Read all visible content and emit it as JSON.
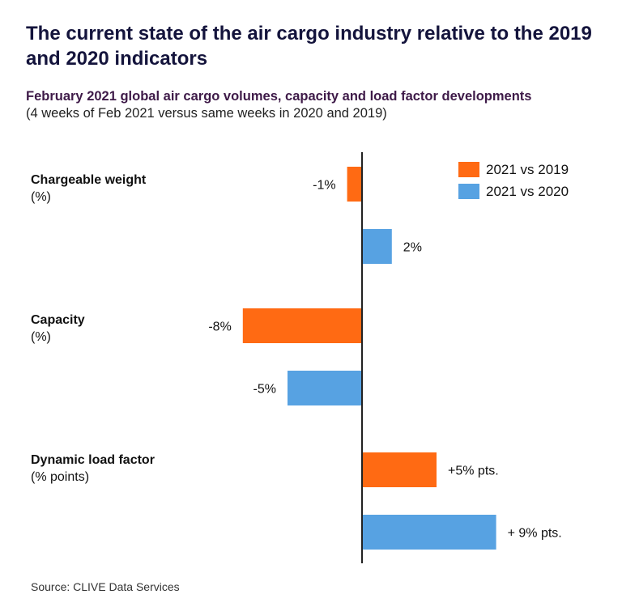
{
  "header": {
    "title": "The current state of the air cargo industry relative to the 2019 and 2020 indicators",
    "subtitle": "February 2021 global air cargo volumes, capacity and load factor developments",
    "subnote": "(4 weeks of Feb 2021 versus same weeks in 2020 and 2019)"
  },
  "footer": {
    "source": "Source: CLIVE Data Services"
  },
  "colors": {
    "vs2019": "#ff6a13",
    "vs2020": "#57a2e2",
    "axis": "#222222"
  },
  "chart_data": {
    "type": "bar",
    "orientation": "horizontal",
    "title": "February 2021 global air cargo volumes, capacity and load factor developments",
    "categories": [
      {
        "name": "Chargeable weight",
        "unit": "(%)"
      },
      {
        "name": "Capacity",
        "unit": "(%)"
      },
      {
        "name": "Dynamic load factor",
        "unit": "(% points)"
      }
    ],
    "series": [
      {
        "name": "2021 vs 2019",
        "color": "#ff6a13",
        "values": [
          -1,
          -8,
          5
        ],
        "labels": [
          "-1%",
          "-8%",
          "+5% pts."
        ]
      },
      {
        "name": "2021 vs 2020",
        "color": "#57a2e2",
        "values": [
          2,
          -5,
          9
        ],
        "labels": [
          "2%",
          "-5%",
          "+ 9% pts."
        ]
      }
    ],
    "xlim": [
      -8,
      9
    ],
    "grid": false,
    "legend": "top-right"
  }
}
